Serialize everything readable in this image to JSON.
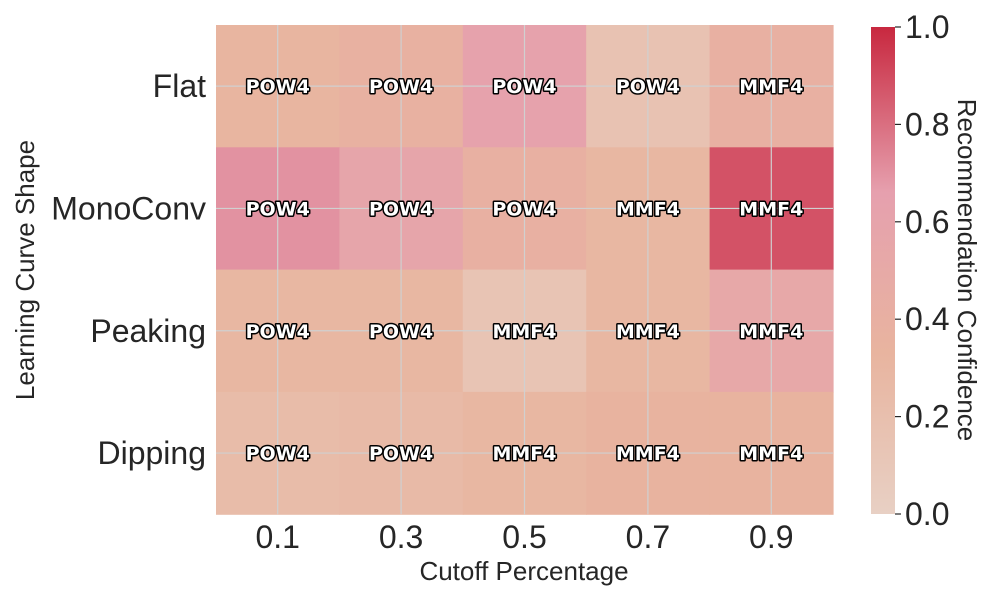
{
  "chart_data": {
    "type": "heatmap",
    "xlabel": "Cutoff Percentage",
    "ylabel": "Learning Curve Shape",
    "x_categories": [
      "0.1",
      "0.3",
      "0.5",
      "0.7",
      "0.9"
    ],
    "y_categories": [
      "Flat",
      "MonoConv",
      "Peaking",
      "Dipping"
    ],
    "values": [
      [
        0.32,
        0.38,
        0.62,
        0.16,
        0.4
      ],
      [
        0.7,
        0.58,
        0.4,
        0.3,
        0.88
      ],
      [
        0.3,
        0.3,
        0.14,
        0.3,
        0.52
      ],
      [
        0.24,
        0.26,
        0.3,
        0.34,
        0.34
      ]
    ],
    "labels": [
      [
        "POW4",
        "POW4",
        "POW4",
        "POW4",
        "MMF4"
      ],
      [
        "POW4",
        "POW4",
        "POW4",
        "MMF4",
        "MMF4"
      ],
      [
        "POW4",
        "POW4",
        "MMF4",
        "MMF4",
        "MMF4"
      ],
      [
        "POW4",
        "POW4",
        "MMF4",
        "MMF4",
        "MMF4"
      ]
    ],
    "colorbar": {
      "label": "Recommendation Confidence",
      "range": [
        0.0,
        1.0
      ],
      "ticks": [
        "0.0",
        "0.2",
        "0.4",
        "0.6",
        "0.8",
        "1.0"
      ],
      "colors": [
        "#e8d0c4",
        "#e8b49f",
        "#e6a0ae",
        "#c8283f"
      ]
    },
    "grid": true
  }
}
